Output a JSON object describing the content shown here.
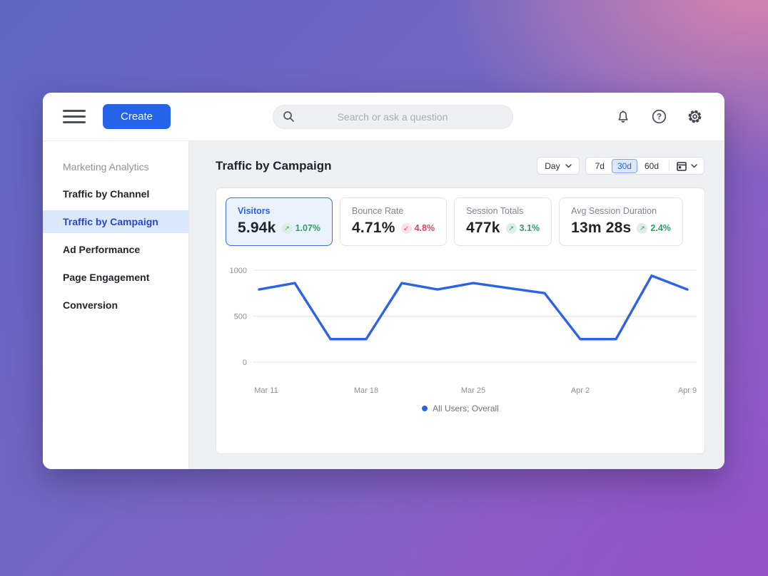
{
  "topbar": {
    "create_label": "Create",
    "search_placeholder": "Search or ask a question"
  },
  "sidebar": {
    "section_label": "Marketing Analytics",
    "items": [
      {
        "label": "Traffic by Channel",
        "selected": false
      },
      {
        "label": "Traffic by Campaign",
        "selected": true
      },
      {
        "label": "Ad Performance",
        "selected": false
      },
      {
        "label": "Page Engagement",
        "selected": false
      },
      {
        "label": "Conversion",
        "selected": false
      }
    ]
  },
  "main": {
    "title": "Traffic by Campaign",
    "granularity": {
      "label": "Day"
    },
    "range_options": [
      {
        "label": "7d",
        "selected": false
      },
      {
        "label": "30d",
        "selected": true
      },
      {
        "label": "60d",
        "selected": false
      }
    ]
  },
  "metric_cards": [
    {
      "label": "Visitors",
      "value": "5.94k",
      "delta": "1.07%",
      "arrow": "↗",
      "trend": "up",
      "trend_color": "green",
      "selected": true
    },
    {
      "label": "Bounce Rate",
      "value": "4.71%",
      "delta": "4.8%",
      "arrow": "↙",
      "trend": "down",
      "trend_color": "red",
      "selected": false
    },
    {
      "label": "Session Totals",
      "value": "477k",
      "delta": "3.1%",
      "arrow": "↗",
      "trend": "up",
      "trend_color": "green",
      "selected": false
    },
    {
      "label": "Avg Session Duration",
      "value": "13m 28s",
      "delta": "2.4%",
      "arrow": "↗",
      "trend": "up",
      "trend_color": "green",
      "selected": false
    }
  ],
  "chart_data": {
    "type": "line",
    "title": "Traffic by Campaign",
    "series": [
      {
        "name": "All Users; Overall",
        "color": "#2b63e4",
        "values": [
          790,
          860,
          250,
          250,
          860,
          790,
          860,
          805,
          750,
          250,
          250,
          940,
          790
        ]
      }
    ],
    "ylim": [
      0,
      1000
    ],
    "yticks": [
      0,
      500,
      1000
    ],
    "x_tick_labels": [
      {
        "index": 0,
        "label": "Mar 11"
      },
      {
        "index": 3,
        "label": "Mar 18"
      },
      {
        "index": 6,
        "label": "Mar 25"
      },
      {
        "index": 9,
        "label": "Apr 2"
      },
      {
        "index": 12,
        "label": "Apr 9"
      }
    ],
    "grid": "horizontal",
    "legend_position": "bottom"
  },
  "colors": {
    "accent_blue": "#2563e8",
    "positive_green": "#2f9e60",
    "negative_red": "#d7455f",
    "line_blue": "#2b63e4",
    "sidebar_selected_bg": "#dbe8fb",
    "content_bg": "#eef0f4"
  }
}
